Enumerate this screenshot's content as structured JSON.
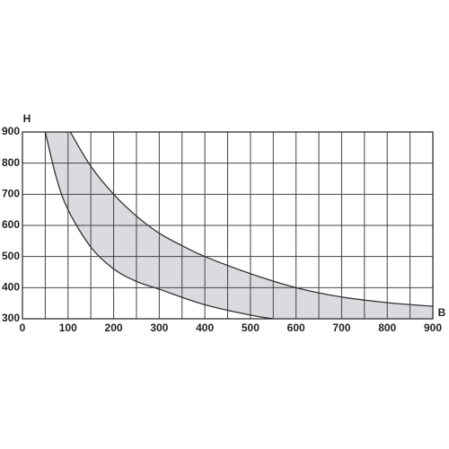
{
  "chart_data": {
    "type": "band",
    "x_label": "B",
    "y_label": "H",
    "xlim": [
      0,
      900
    ],
    "xticks": [
      0,
      100,
      200,
      300,
      400,
      500,
      600,
      700,
      800,
      900
    ],
    "xgridlines": [
      0,
      50,
      100,
      150,
      200,
      250,
      300,
      350,
      400,
      450,
      500,
      550,
      600,
      650,
      700,
      750,
      800,
      850,
      900
    ],
    "ylim": [
      300,
      900
    ],
    "yticks": [
      300,
      400,
      500,
      600,
      700,
      800,
      900
    ],
    "grid": true,
    "fill_color": "#d9dbde",
    "line_color": "#333333",
    "series": [
      {
        "x": [
          50,
          75,
          100,
          150,
          200,
          250,
          300,
          400,
          500,
          550
        ],
        "values": [
          900,
          750,
          650,
          530,
          460,
          420,
          395,
          345,
          312,
          300
        ]
      },
      {
        "x": [
          105,
          150,
          200,
          250,
          300,
          350,
          400,
          500,
          600,
          700,
          800,
          900
        ],
        "values": [
          900,
          790,
          700,
          630,
          575,
          535,
          500,
          445,
          400,
          370,
          352,
          340
        ]
      }
    ]
  }
}
